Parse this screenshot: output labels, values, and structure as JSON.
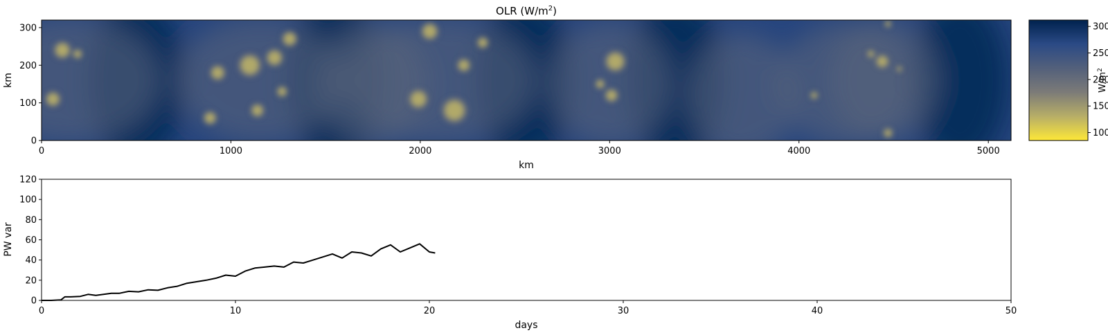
{
  "chart_data": [
    {
      "type": "heatmap",
      "title_main": "OLR (W/m",
      "title_sup": "2",
      "title_end": ")",
      "xlabel": "km",
      "ylabel": "km",
      "xlim": [
        0,
        5120
      ],
      "ylim": [
        0,
        320
      ],
      "xticks": [
        0,
        1000,
        2000,
        3000,
        4000,
        5000
      ],
      "yticks": [
        0,
        100,
        200,
        300
      ],
      "colorbar": {
        "label_main": "W/m",
        "label_sup": "2",
        "range": [
          85,
          312
        ],
        "ticks": [
          100,
          150,
          200,
          250,
          300
        ],
        "colormap": "cividis_r",
        "colors": [
          "#fee838",
          "#b7ae67",
          "#7c7b78",
          "#53607b",
          "#2b4a85",
          "#00224e"
        ]
      },
      "background_value": 272,
      "dark_bands_km": [
        500,
        1550,
        2550,
        3350,
        4850
      ],
      "convective_cells_km": [
        {
          "x": 110,
          "y": 240,
          "r": 45
        },
        {
          "x": 60,
          "y": 110,
          "r": 40
        },
        {
          "x": 190,
          "y": 230,
          "r": 25
        },
        {
          "x": 890,
          "y": 60,
          "r": 35
        },
        {
          "x": 930,
          "y": 180,
          "r": 40
        },
        {
          "x": 1100,
          "y": 200,
          "r": 60
        },
        {
          "x": 1140,
          "y": 80,
          "r": 35
        },
        {
          "x": 1230,
          "y": 220,
          "r": 45
        },
        {
          "x": 1270,
          "y": 130,
          "r": 28
        },
        {
          "x": 1310,
          "y": 270,
          "r": 40
        },
        {
          "x": 1990,
          "y": 110,
          "r": 50
        },
        {
          "x": 2050,
          "y": 290,
          "r": 45
        },
        {
          "x": 2180,
          "y": 80,
          "r": 65
        },
        {
          "x": 2230,
          "y": 200,
          "r": 35
        },
        {
          "x": 2330,
          "y": 260,
          "r": 30
        },
        {
          "x": 3030,
          "y": 210,
          "r": 55
        },
        {
          "x": 3010,
          "y": 120,
          "r": 35
        },
        {
          "x": 2950,
          "y": 150,
          "r": 25
        },
        {
          "x": 4080,
          "y": 120,
          "r": 20
        },
        {
          "x": 4440,
          "y": 210,
          "r": 35
        },
        {
          "x": 4380,
          "y": 230,
          "r": 20
        },
        {
          "x": 4530,
          "y": 190,
          "r": 15
        },
        {
          "x": 4470,
          "y": 20,
          "r": 25
        },
        {
          "x": 4470,
          "y": 310,
          "r": 18
        }
      ]
    },
    {
      "type": "line",
      "xlabel": "days",
      "ylabel": "PW var",
      "xlim": [
        0,
        50
      ],
      "ylim": [
        0,
        120
      ],
      "xticks": [
        0,
        10,
        20,
        30,
        40,
        50
      ],
      "yticks": [
        0,
        20,
        40,
        60,
        80,
        100,
        120
      ],
      "color": "#000000",
      "x": [
        0,
        0.5,
        1.0,
        1.2,
        1.5,
        2.0,
        2.4,
        2.8,
        3.2,
        3.6,
        4.0,
        4.5,
        5.0,
        5.5,
        6.0,
        6.5,
        7.0,
        7.5,
        8.0,
        8.5,
        9.0,
        9.5,
        10.0,
        10.5,
        11.0,
        11.5,
        12.0,
        12.5,
        13.0,
        13.5,
        14.0,
        14.5,
        15.0,
        15.5,
        16.0,
        16.5,
        17.0,
        17.5,
        18.0,
        18.5,
        19.0,
        19.5,
        20.0,
        20.3
      ],
      "y": [
        0,
        0,
        0.5,
        3.5,
        3.5,
        4.0,
        6.0,
        5.0,
        6.0,
        7.0,
        7.0,
        9.0,
        8.5,
        10.5,
        10.0,
        12.5,
        14.0,
        17.0,
        18.5,
        20.0,
        22.0,
        25.0,
        24.0,
        29.0,
        32.0,
        33.0,
        34.0,
        33.0,
        38.0,
        37.0,
        40.0,
        43.0,
        46.0,
        42.0,
        48.0,
        47.0,
        44.0,
        51.0,
        55.0,
        48.0,
        52.0,
        56.0,
        48.0,
        47.0
      ]
    }
  ]
}
